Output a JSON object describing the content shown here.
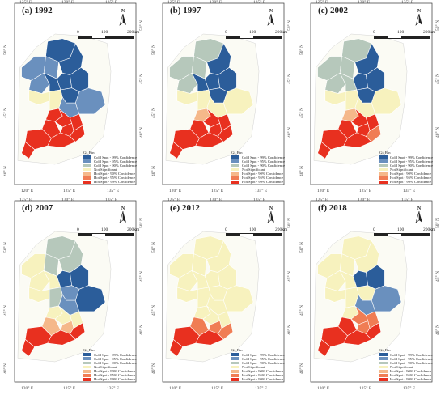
{
  "legend": {
    "title": "Gi_Bin",
    "items": [
      {
        "label": "Cold Spot - 99% Confidence",
        "color": "#2b5d9a"
      },
      {
        "label": "Cold Spot - 95% Confidence",
        "color": "#6a90be"
      },
      {
        "label": "Cold Spot - 90% Confidence",
        "color": "#b6c8bb"
      },
      {
        "label": "Not Significant",
        "color": "#f7f2be"
      },
      {
        "label": "Hot Spot - 90% Confidence",
        "color": "#f5b88a"
      },
      {
        "label": "Hot Spot - 95% Confidence",
        "color": "#f07d54"
      },
      {
        "label": "Hot Spot - 99% Confidence",
        "color": "#e8301f"
      }
    ]
  },
  "scale_bar": {
    "labels": [
      "0",
      "100",
      "200km"
    ]
  },
  "north_arrow": {
    "label": "N"
  },
  "graticule": {
    "lon_labels": [
      "120° E",
      "125° E",
      "130° E",
      "135° E"
    ],
    "lat_labels": [
      "40° N",
      "45° N",
      "50° N"
    ]
  },
  "map_data": {
    "type": "choropleth",
    "variable": "Gi_Bin",
    "region": "Northeast China",
    "panels": [
      {
        "title": "(a) 1992",
        "year": 1992,
        "classes": [
          "c99",
          "c95",
          "c95",
          "c95",
          "c99",
          "c99",
          "c99",
          "c99",
          "c99",
          "ns",
          "ns",
          "c95",
          "c95",
          "h99",
          "h99",
          "h99",
          "h99",
          "h99",
          "h99",
          "h99",
          "h99",
          "h99"
        ]
      },
      {
        "title": "(b) 1997",
        "year": 1997,
        "classes": [
          "c90",
          "c90",
          "c90",
          "c90",
          "c99",
          "c99",
          "c99",
          "c99",
          "c99",
          "ns",
          "ns",
          "ns",
          "ns",
          "h90",
          "h99",
          "h99",
          "h99",
          "h99",
          "h99",
          "h99",
          "h99",
          "h99"
        ]
      },
      {
        "title": "(c) 2002",
        "year": 2002,
        "classes": [
          "c90",
          "c90",
          "c90",
          "c90",
          "c99",
          "c90",
          "c99",
          "c99",
          "c99",
          "ns",
          "ns",
          "ns",
          "ns",
          "h90",
          "h99",
          "h99",
          "h99",
          "h99",
          "h95",
          "h99",
          "h99",
          "h99"
        ]
      },
      {
        "title": "(d) 2007",
        "year": 2007,
        "classes": [
          "c90",
          "ns",
          "c90",
          "ns",
          "c90",
          "ns",
          "c99",
          "c99",
          "c95",
          "ns",
          "c90",
          "c95",
          "c99",
          "ns",
          "ns",
          "ns",
          "h90",
          "h90",
          "h99",
          "h99",
          "h99",
          "h99"
        ]
      },
      {
        "title": "(e) 2012",
        "year": 2012,
        "classes": [
          "ns",
          "ns",
          "ns",
          "ns",
          "ns",
          "ns",
          "ns",
          "ns",
          "ns",
          "ns",
          "ns",
          "ns",
          "ns",
          "ns",
          "ns",
          "ns",
          "h95",
          "h95",
          "h95",
          "h99",
          "h99",
          "h99"
        ]
      },
      {
        "title": "(f) 2018",
        "year": 2018,
        "classes": [
          "ns",
          "ns",
          "ns",
          "ns",
          "ns",
          "ns",
          "c99",
          "c99",
          "ns",
          "ns",
          "ns",
          "c95",
          "c95",
          "ns",
          "h95",
          "h95",
          "h95",
          "h99",
          "h99",
          "h99",
          "h99",
          "h99"
        ]
      }
    ]
  }
}
